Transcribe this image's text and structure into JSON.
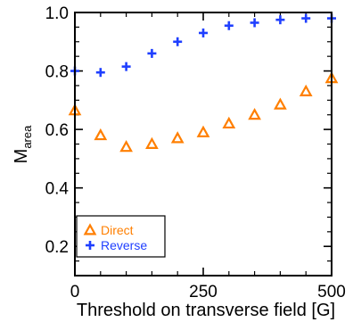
{
  "chart_data": {
    "type": "scatter",
    "xlabel": "Threshold on transverse field [G]",
    "ylabel_main": "M",
    "ylabel_sub": "area",
    "xlim": [
      0,
      500
    ],
    "ylim": [
      0.1,
      1.0
    ],
    "xticks": [
      0,
      250,
      500
    ],
    "xtick_labels": [
      "0",
      "250",
      "500"
    ],
    "yticks": [
      0.2,
      0.4,
      0.6,
      0.8,
      1.0
    ],
    "ytick_labels": [
      "0.2",
      "0.4",
      "0.6",
      "0.8",
      "1.0"
    ],
    "grid": false,
    "legend_position": "bottom-left",
    "series": [
      {
        "name": "Direct",
        "marker": "triangle",
        "color": "#ff7f00",
        "x": [
          0,
          50,
          100,
          150,
          200,
          250,
          300,
          350,
          400,
          450,
          500
        ],
        "y": [
          0.665,
          0.58,
          0.54,
          0.55,
          0.57,
          0.59,
          0.62,
          0.65,
          0.685,
          0.73,
          0.775
        ]
      },
      {
        "name": "Reverse",
        "marker": "plus",
        "color": "#1f3fff",
        "x": [
          0,
          50,
          100,
          150,
          200,
          250,
          300,
          350,
          400,
          450,
          500
        ],
        "y": [
          0.8,
          0.795,
          0.815,
          0.86,
          0.9,
          0.93,
          0.955,
          0.965,
          0.975,
          0.98,
          0.98
        ]
      }
    ]
  }
}
